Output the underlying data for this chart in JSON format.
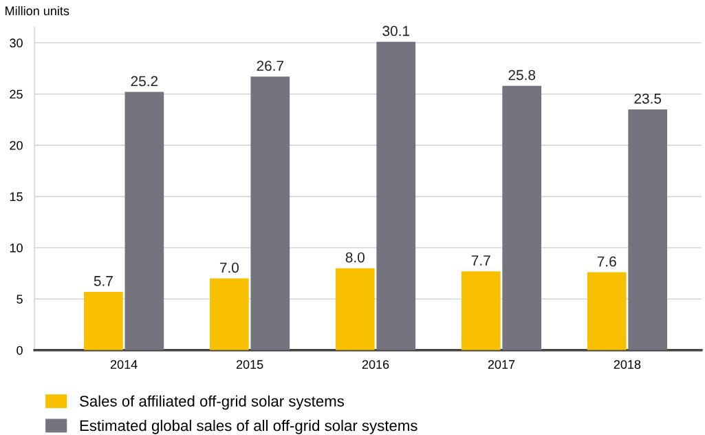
{
  "chart_data": {
    "type": "bar",
    "ylabel": "Million units",
    "categories": [
      "2014",
      "2015",
      "2016",
      "2017",
      "2018"
    ],
    "series": [
      {
        "name": "Sales of affiliated off-grid solar systems",
        "color": "#f9c000",
        "values": [
          5.7,
          7.0,
          8.0,
          7.7,
          7.6
        ],
        "value_labels": [
          "5.7",
          "7.0",
          "8.0",
          "7.7",
          "7.6"
        ]
      },
      {
        "name": "Estimated global sales of all off-grid solar systems",
        "color": "#75737e",
        "values": [
          25.2,
          26.7,
          30.1,
          25.8,
          23.5
        ],
        "value_labels": [
          "25.2",
          "26.7",
          "30.1",
          "25.8",
          "23.5"
        ]
      }
    ],
    "ylim": [
      0,
      31.5
    ],
    "yticks": [
      0,
      5,
      10,
      15,
      20,
      25,
      30
    ],
    "grid": "y",
    "legend": "bottom"
  }
}
